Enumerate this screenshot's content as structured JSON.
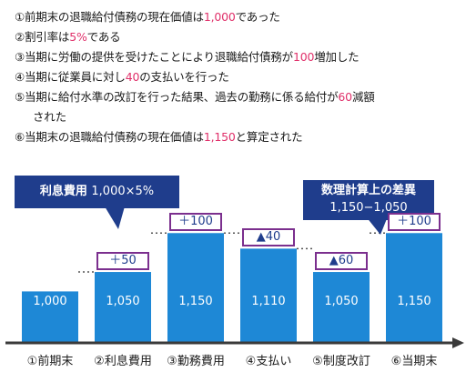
{
  "notes": [
    {
      "before": "①前期末の退職給付債務の現在価値は",
      "hl": "1,000",
      "after": "であった",
      "cont": ""
    },
    {
      "before": "②割引率は",
      "hl": "5%",
      "after": "である",
      "cont": ""
    },
    {
      "before": "③当期に労働の提供を受けたことにより退職給付債務が",
      "hl": "100",
      "after": "増加した",
      "cont": ""
    },
    {
      "before": "④当期に従業員に対し",
      "hl": "40",
      "after": "の支払いを行った",
      "cont": ""
    },
    {
      "before": "⑤当期に給付水準の改訂を行った結果、過去の勤務に係る給付が",
      "hl": "60",
      "after": "減額",
      "cont": "された"
    },
    {
      "before": "⑥当期末の退職給付債務の現在価値は",
      "hl": "1,150",
      "after": "と算定された",
      "cont": ""
    }
  ],
  "callouts": {
    "interest": {
      "label": "利息費用",
      "value": "1,000×5%"
    },
    "actuarial": {
      "label": "数理計算上の差異",
      "value": "1,150−1,050"
    }
  },
  "chart_data": {
    "type": "bar",
    "categories": [
      "①前期末",
      "②利息費用",
      "③勤務費用",
      "④支払い",
      "⑤制度改訂",
      "⑥当期末"
    ],
    "values": [
      1000,
      1050,
      1150,
      1110,
      1050,
      1150
    ],
    "value_labels": [
      "1,000",
      "1,050",
      "1,150",
      "1,110",
      "1,050",
      "1,150"
    ],
    "change_labels": [
      "",
      "＋50",
      "＋100",
      "▲40",
      "▲60",
      "＋100"
    ],
    "ylim": [
      870,
      1160
    ],
    "colors": {
      "bar": "#1e88d6",
      "callout": "#1f3d8c",
      "label_border": "#7b2f8e",
      "highlight": "#e0306a"
    }
  }
}
